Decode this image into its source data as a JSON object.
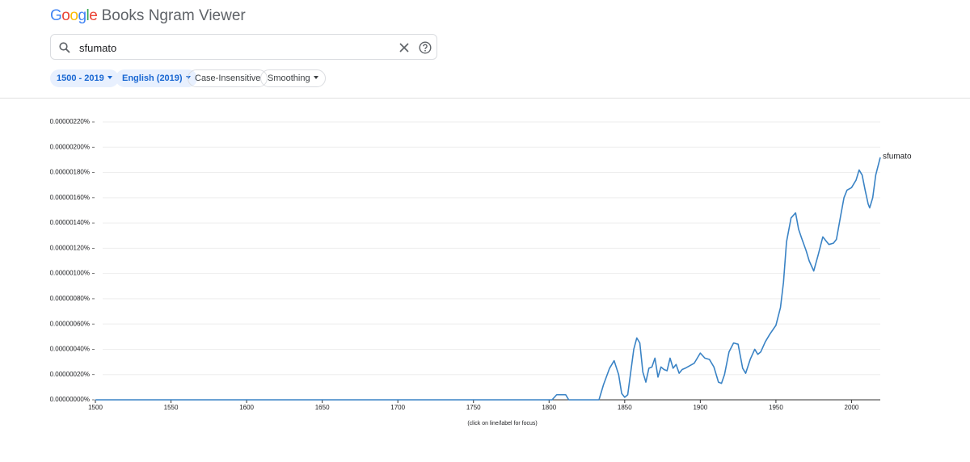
{
  "header": {
    "logo": "Google",
    "app_name": "Books Ngram Viewer",
    "query": "sfumato",
    "chips": [
      "1500 - 2019",
      "English (2019)",
      "Case-Insensitive",
      "Smoothing"
    ]
  },
  "chart_data": {
    "type": "line",
    "x": [
      1500,
      1802,
      1805,
      1811,
      1813,
      1833,
      1836,
      1840,
      1843,
      1846,
      1848,
      1850,
      1852,
      1854,
      1856,
      1858,
      1860,
      1862,
      1864,
      1866,
      1868,
      1870,
      1872,
      1874,
      1876,
      1878,
      1880,
      1882,
      1884,
      1886,
      1888,
      1890,
      1893,
      1896,
      1900,
      1903,
      1906,
      1909,
      1912,
      1914,
      1916,
      1919,
      1922,
      1925,
      1928,
      1930,
      1933,
      1936,
      1938,
      1940,
      1943,
      1946,
      1950,
      1953,
      1955,
      1957,
      1960,
      1963,
      1965,
      1967,
      1970,
      1972,
      1975,
      1978,
      1981,
      1983,
      1985,
      1988,
      1990,
      1993,
      1995,
      1997,
      2000,
      2003,
      2005,
      2007,
      2009,
      2011,
      2012,
      2014,
      2016,
      2019
    ],
    "series": [
      {
        "name": "sfumato",
        "color": "#3a83c5",
        "values": [
          0,
          0,
          4e-08,
          4e-08,
          0,
          0,
          1.2e-07,
          2.5e-07,
          3.1e-07,
          2e-07,
          5e-08,
          2e-08,
          4e-08,
          2.2e-07,
          4e-07,
          4.9e-07,
          4.5e-07,
          2.2e-07,
          1.4e-07,
          2.5e-07,
          2.6e-07,
          3.3e-07,
          1.8e-07,
          2.6e-07,
          2.4e-07,
          2.3e-07,
          3.3e-07,
          2.5e-07,
          2.8e-07,
          2.1e-07,
          2.4e-07,
          2.5e-07,
          2.7e-07,
          2.9e-07,
          3.7e-07,
          3.3e-07,
          3.2e-07,
          2.6e-07,
          1.4e-07,
          1.3e-07,
          2e-07,
          3.8e-07,
          4.5e-07,
          4.4e-07,
          2.5e-07,
          2.1e-07,
          3.2e-07,
          4e-07,
          3.6e-07,
          3.8e-07,
          4.6e-07,
          5.2e-07,
          5.9e-07,
          7.3e-07,
          9.3e-07,
          1.25e-06,
          1.44e-06,
          1.48e-06,
          1.35e-06,
          1.28e-06,
          1.18e-06,
          1.1e-06,
          1.02e-06,
          1.15e-06,
          1.29e-06,
          1.26e-06,
          1.23e-06,
          1.24e-06,
          1.27e-06,
          1.47e-06,
          1.6e-06,
          1.66e-06,
          1.68e-06,
          1.74e-06,
          1.82e-06,
          1.78e-06,
          1.66e-06,
          1.55e-06,
          1.52e-06,
          1.6e-06,
          1.78e-06,
          1.92e-06
        ]
      }
    ],
    "xlim": [
      1500,
      2019
    ],
    "xticks": [
      1500,
      1550,
      1600,
      1650,
      1700,
      1750,
      1800,
      1850,
      1900,
      1950,
      2000
    ],
    "ylim": [
      0,
      2.2e-06
    ],
    "yticks": [
      {
        "value": 0,
        "label": "0.00000000%"
      },
      {
        "value": 2e-07,
        "label": "0.00000020%"
      },
      {
        "value": 4e-07,
        "label": "0.00000040%"
      },
      {
        "value": 6e-07,
        "label": "0.00000060%"
      },
      {
        "value": 8e-07,
        "label": "0.00000080%"
      },
      {
        "value": 1e-06,
        "label": "0.00000100%"
      },
      {
        "value": 1.2e-06,
        "label": "0.00000120%"
      },
      {
        "value": 1.4e-06,
        "label": "0.00000140%"
      },
      {
        "value": 1.6e-06,
        "label": "0.00000160%"
      },
      {
        "value": 1.8e-06,
        "label": "0.00000180%"
      },
      {
        "value": 2e-06,
        "label": "0.00000200%"
      },
      {
        "value": 2.2e-06,
        "label": "0.00000220%"
      }
    ],
    "grid": true,
    "note": "(click on line/label for focus)"
  }
}
